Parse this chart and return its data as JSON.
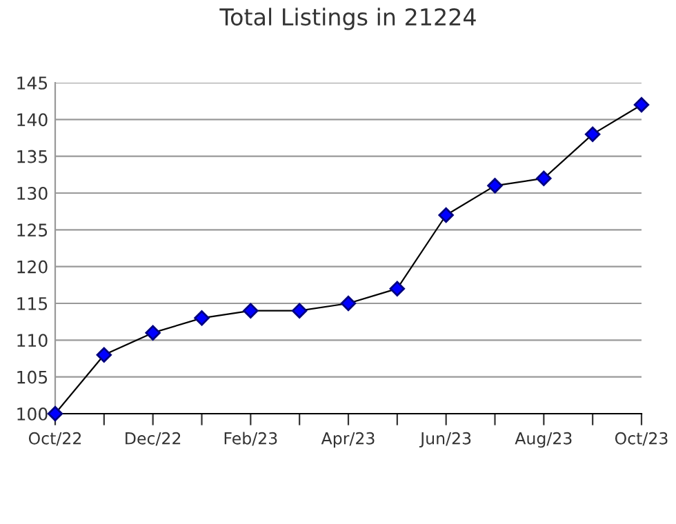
{
  "chart_data": {
    "type": "line",
    "title": "Total Listings in 21224",
    "categories": [
      "Oct/22",
      null,
      "Dec/22",
      null,
      "Feb/23",
      null,
      "Apr/23",
      null,
      "Jun/23",
      null,
      "Aug/23",
      null,
      "Oct/23"
    ],
    "series": [
      {
        "color": "#0000ff",
        "values": [
          100,
          108,
          111,
          113,
          114,
          114,
          115,
          117,
          127,
          131,
          132,
          138,
          142
        ]
      }
    ],
    "ylim": [
      100,
      145
    ],
    "yticks": [
      100,
      105,
      110,
      115,
      120,
      125,
      130,
      135,
      140,
      145
    ],
    "grid": "y",
    "marker": "diamond",
    "line_style": "solid"
  }
}
